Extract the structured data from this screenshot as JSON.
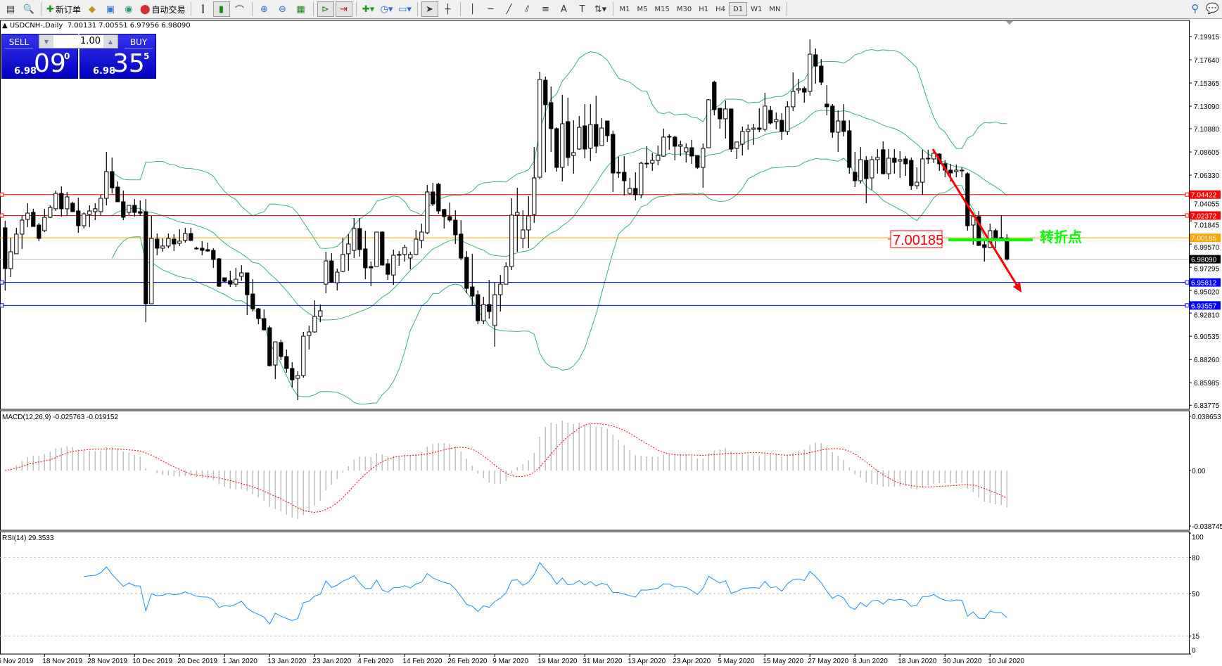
{
  "toolbar": {
    "new_order": "新订单",
    "auto_trading": "自动交易",
    "timeframes": [
      "M1",
      "M5",
      "M15",
      "M30",
      "H1",
      "H4",
      "D1",
      "W1",
      "MN"
    ],
    "active_timeframe": "D1"
  },
  "header": {
    "symbol": "USDCNH-,Daily",
    "ohlc": "7.00131 7.00551 6.97956 6.98090"
  },
  "trade_panel": {
    "sell_label": "SELL",
    "buy_label": "BUY",
    "lot": "1.00",
    "sell_prefix": "6.98",
    "sell_big": "09",
    "sell_sup": "0",
    "buy_prefix": "6.98",
    "buy_big": "35",
    "buy_sup": "5"
  },
  "colors": {
    "bands": "#3cb371",
    "bull_fill": "#ffffff",
    "bear_fill": "#000000",
    "macd_hist": "#c0c0c0",
    "macd_signal": "#ff0000",
    "rsi": "#1e90ff",
    "resistance": "#ff0000",
    "pivot": "#ffa500",
    "support": "#0000ff",
    "bid": "#c0c0c0",
    "annotation_green": "#00ff00",
    "trend_arrow": "#ff0000"
  },
  "chart_data": {
    "type": "candlestick",
    "symbol": "USDCNH-",
    "timeframe": "Daily",
    "indicators": [
      "Bollinger Bands(20,2)",
      "MACD(12,26,9)",
      "RSI(14)"
    ],
    "price_axis_ticks": [
      "7.19915",
      "7.17640",
      "7.15365",
      "7.13090",
      "7.10880",
      "7.08605",
      "7.06330",
      "7.04055",
      "7.01845",
      "6.99570",
      "6.97295",
      "6.95020",
      "6.92810",
      "6.90535",
      "6.88260",
      "6.85985",
      "6.83775"
    ],
    "ylim": [
      6.83775,
      7.19915
    ],
    "time_labels": [
      "6 Nov 2019",
      "18 Nov 2019",
      "28 Nov 2019",
      "10 Dec 2019",
      "20 Dec 2019",
      "1 Jan 2020",
      "13 Jan 2020",
      "23 Jan 2020",
      "4 Feb 2020",
      "14 Feb 2020",
      "26 Feb 2020",
      "9 Mar 2020",
      "19 Mar 2020",
      "31 Mar 2020",
      "13 Apr 2020",
      "23 Apr 2020",
      "5 May 2020",
      "15 May 2020",
      "27 May 2020",
      "8 Jun 2020",
      "18 Jun 2020",
      "30 Jun 2020",
      "10 Jul 2020"
    ],
    "hlines": [
      {
        "price": 7.04422,
        "label": "7.04422",
        "kind": "resistance"
      },
      {
        "price": 7.02372,
        "label": "7.02372",
        "kind": "resistance"
      },
      {
        "price": 7.00185,
        "label": "7.00185",
        "kind": "pivot"
      },
      {
        "price": 6.9809,
        "label": "6.98090",
        "kind": "bid"
      },
      {
        "price": 6.95812,
        "label": "6.95812",
        "kind": "support"
      },
      {
        "price": 6.93557,
        "label": "6.93557",
        "kind": "support"
      }
    ],
    "annotations": {
      "price_box": "7.00185",
      "pivot_text": "转折点"
    },
    "macd": {
      "label": "MACD(12,26,9) -0.025763 -0.019152",
      "ylim": [
        -0.038745,
        0.038653
      ],
      "ticks": [
        "0.038653",
        "0.00",
        "-0.038745"
      ]
    },
    "rsi": {
      "label": "RSI(14) 29.3533",
      "ylim": [
        0,
        100
      ],
      "levels": [
        80,
        50,
        15
      ],
      "ticks": [
        "100",
        "80",
        "50",
        "15",
        "0"
      ]
    },
    "ohlc": [
      [
        7.0117,
        7.0186,
        6.9502,
        6.9717
      ],
      [
        6.9717,
        7.002,
        6.9634,
        6.9882
      ],
      [
        6.9862,
        7.0117,
        6.9862,
        7.0055
      ],
      [
        7.0055,
        7.0234,
        6.991,
        7.0192
      ],
      [
        7.0199,
        7.0358,
        7.0124,
        7.0261
      ],
      [
        7.0268,
        7.0303,
        7.013,
        7.013
      ],
      [
        7.0144,
        7.0165,
        6.9986,
        7.0013
      ],
      [
        7.0089,
        7.0303,
        7.0075,
        7.022
      ],
      [
        7.022,
        7.0337,
        7.0213,
        7.0316
      ],
      [
        7.0303,
        7.0482,
        7.0282,
        7.0454
      ],
      [
        7.0454,
        7.0523,
        7.0227,
        7.0303
      ],
      [
        7.0303,
        7.0468,
        7.0241,
        7.042
      ],
      [
        7.0358,
        7.0372,
        7.0275,
        7.0275
      ],
      [
        7.0282,
        7.0413,
        7.0068,
        7.0137
      ],
      [
        7.0137,
        7.0268,
        7.011,
        7.0254
      ],
      [
        7.0248,
        7.0337,
        7.0124,
        7.0282
      ],
      [
        7.0275,
        7.0358,
        7.0192,
        7.0303
      ],
      [
        7.0275,
        7.0441,
        7.0241,
        7.0406
      ],
      [
        7.0406,
        7.0861,
        7.0337,
        7.0668
      ],
      [
        7.0668,
        7.0806,
        7.0454,
        7.0509
      ],
      [
        7.0516,
        7.0571,
        7.0372,
        7.0372
      ],
      [
        7.0372,
        7.0482,
        7.0192,
        7.022
      ],
      [
        7.0268,
        7.0337,
        7.0241,
        7.0337
      ],
      [
        7.0337,
        7.0399,
        7.0227,
        7.0268
      ],
      [
        7.0275,
        7.0385,
        7.0234,
        7.0261
      ],
      [
        7.0275,
        7.0399,
        6.9192,
        6.9372
      ],
      [
        6.9372,
        7.0234,
        6.9372,
        7.0013
      ],
      [
        7.0006,
        7.0061,
        6.9848,
        6.9917
      ],
      [
        6.9917,
        7.0013,
        6.9882,
        6.9938
      ],
      [
        6.9938,
        7.0061,
        6.9917,
        7.0013
      ],
      [
        7.0006,
        7.0055,
        6.9889,
        6.9958
      ],
      [
        6.9965,
        7.0103,
        6.9938,
        6.9986
      ],
      [
        6.9993,
        7.0117,
        6.9972,
        7.0061
      ],
      [
        7.0061,
        7.0117,
        6.9986,
        6.9993
      ],
      [
        6.9917,
        6.9931,
        6.9903,
        6.9917
      ],
      [
        6.9917,
        6.9986,
        6.9848,
        6.9896
      ],
      [
        6.9903,
        6.9972,
        6.9882,
        6.9889
      ],
      [
        6.9896,
        6.9917,
        6.9724,
        6.9806
      ],
      [
        6.9813,
        6.982,
        6.9537,
        6.9544
      ],
      [
        6.9627,
        6.9627,
        6.9585,
        6.9592
      ],
      [
        6.9599,
        6.9696,
        6.9537,
        6.9564
      ],
      [
        6.9564,
        6.9724,
        6.9537,
        6.9613
      ],
      [
        6.9641,
        6.9751,
        6.9599,
        6.9675
      ],
      [
        6.9675,
        6.9675,
        6.9261,
        6.9461
      ],
      [
        6.9468,
        6.9613,
        6.9296,
        6.9323
      ],
      [
        6.9323,
        6.933,
        6.9172,
        6.9227
      ],
      [
        6.9227,
        6.9316,
        6.911,
        6.9117
      ],
      [
        6.9137,
        6.9158,
        6.8758,
        6.8765
      ],
      [
        6.8772,
        6.8999,
        6.8634,
        6.8999
      ],
      [
        6.8993,
        6.902,
        6.882,
        6.8855
      ],
      [
        6.8855,
        6.8924,
        6.8696,
        6.8738
      ],
      [
        6.8738,
        6.88,
        6.8552,
        6.8627
      ],
      [
        6.8641,
        6.871,
        6.8427,
        6.8668
      ],
      [
        6.8668,
        6.9096,
        6.8648,
        6.9054
      ],
      [
        6.9061,
        6.9158,
        6.8924,
        6.9096
      ],
      [
        6.9096,
        6.9406,
        6.9089,
        6.9248
      ],
      [
        6.9248,
        6.9365,
        6.9192,
        6.9303
      ],
      [
        6.9564,
        6.9882,
        6.9475,
        6.9792
      ],
      [
        6.9792,
        6.9868,
        6.9578,
        6.9585
      ],
      [
        6.9578,
        6.9717,
        6.9502,
        6.9682
      ],
      [
        6.9689,
        7.002,
        6.9682,
        6.9855
      ],
      [
        6.9862,
        7.0055,
        6.9696,
        6.9958
      ],
      [
        6.9896,
        7.0213,
        6.982,
        7.011
      ],
      [
        7.011,
        7.0213,
        6.9834,
        6.9903
      ],
      [
        6.991,
        7.0089,
        6.9613,
        6.9724
      ],
      [
        6.9737,
        6.9786,
        6.9544,
        6.9724
      ],
      [
        6.9737,
        7.0075,
        6.9737,
        7.0075
      ],
      [
        7.0075,
        7.0082,
        6.9751,
        6.9751
      ],
      [
        6.9765,
        6.9813,
        6.9606,
        6.9661
      ],
      [
        6.9654,
        6.9903,
        6.9558,
        6.9848
      ],
      [
        6.9855,
        6.9889,
        6.9744,
        6.9848
      ],
      [
        6.9855,
        6.9951,
        6.9786,
        6.9924
      ],
      [
        6.982,
        6.9882,
        6.971,
        6.9855
      ],
      [
        6.9855,
        7.0096,
        6.9848,
        7.0006
      ],
      [
        6.9993,
        7.0158,
        6.9917,
        7.0075
      ],
      [
        7.0068,
        7.0537,
        7.0055,
        7.0468
      ],
      [
        7.0468,
        7.0558,
        7.033,
        7.0351
      ],
      [
        7.0544,
        7.0558,
        7.0254,
        7.0282
      ],
      [
        7.0296,
        7.0303,
        7.011,
        7.0227
      ],
      [
        7.0227,
        7.0365,
        7.0172,
        7.0192
      ],
      [
        7.0192,
        7.0289,
        6.9958,
        7.0048
      ],
      [
        7.0055,
        7.0192,
        6.98,
        6.982
      ],
      [
        6.9827,
        6.9889,
        6.9475,
        6.9523
      ],
      [
        6.9537,
        6.9862,
        6.9358,
        6.9447
      ],
      [
        6.9461,
        6.9502,
        6.9172,
        6.9206
      ],
      [
        6.9206,
        6.944,
        6.9172,
        6.9365
      ],
      [
        6.9365,
        6.9606,
        6.9227,
        6.9296
      ],
      [
        6.9158,
        6.9578,
        6.8951,
        6.9461
      ],
      [
        6.9461,
        6.9654,
        6.9296,
        6.9564
      ],
      [
        6.9564,
        6.9779,
        6.9564,
        6.9737
      ],
      [
        6.9737,
        7.0406,
        6.9703,
        7.0241
      ],
      [
        7.0241,
        7.0509,
        6.9882,
        7.0268
      ],
      [
        7.0013,
        7.0289,
        6.9917,
        7.0096
      ],
      [
        7.0096,
        7.0427,
        6.9917,
        7.0234
      ],
      [
        7.0248,
        7.0909,
        7.0165,
        7.0606
      ],
      [
        7.0613,
        7.1647,
        7.0592,
        7.1571
      ],
      [
        7.1564,
        7.1599,
        7.0661,
        7.1323
      ],
      [
        7.1344,
        7.1502,
        7.0861,
        7.1089
      ],
      [
        7.1089,
        7.1102,
        7.0668,
        7.0709
      ],
      [
        7.0709,
        7.142,
        7.0571,
        7.1137
      ],
      [
        7.1158,
        7.1392,
        7.0723,
        7.0806
      ],
      [
        7.0826,
        7.1171,
        7.0647,
        7.0854
      ],
      [
        7.0889,
        7.1213,
        7.0882,
        7.1102
      ],
      [
        7.1116,
        7.133,
        7.0799,
        7.0889
      ],
      [
        7.0896,
        7.133,
        7.0771,
        7.113
      ],
      [
        7.113,
        7.1413,
        7.0847,
        7.0916
      ],
      [
        7.0923,
        7.1192,
        7.0923,
        7.1095
      ],
      [
        7.1164,
        7.1164,
        7.0958,
        7.102
      ],
      [
        7.1033,
        7.1068,
        7.0468,
        7.0654
      ],
      [
        7.0661,
        7.0813,
        7.0606,
        7.0654
      ],
      [
        7.0661,
        7.082,
        7.0434,
        7.0578
      ],
      [
        7.0454,
        7.0606,
        7.0441,
        7.0503
      ],
      [
        7.0503,
        7.0661,
        7.0385,
        7.0441
      ],
      [
        7.0441,
        7.0764,
        7.0406,
        7.075
      ],
      [
        7.075,
        7.0916,
        7.0702,
        7.0744
      ],
      [
        7.075,
        7.0847,
        7.0675,
        7.0778
      ],
      [
        7.0778,
        7.0923,
        7.073,
        7.0826
      ],
      [
        7.0819,
        7.1089,
        7.0813,
        7.1006
      ],
      [
        7.1013,
        7.1034,
        7.0882,
        7.1006
      ],
      [
        7.1006,
        7.102,
        7.0778,
        7.0916
      ],
      [
        7.0916,
        7.0971,
        7.082,
        7.093
      ],
      [
        7.0861,
        7.0944,
        7.0757,
        7.0902
      ],
      [
        7.0902,
        7.0978,
        7.0744,
        7.082
      ],
      [
        7.0826,
        7.0826,
        7.0695,
        7.0709
      ],
      [
        7.0709,
        7.0944,
        7.0509,
        7.0895
      ],
      [
        7.0902,
        7.1379,
        7.0902,
        7.1372
      ],
      [
        7.1544,
        7.1558,
        7.122,
        7.1275
      ],
      [
        7.1289,
        7.1289,
        7.1089,
        7.1185
      ],
      [
        7.1185,
        7.1365,
        7.0992,
        7.1282
      ],
      [
        7.1282,
        7.1282,
        7.0861,
        7.0889
      ],
      [
        7.0896,
        7.0958,
        7.0792,
        7.0958
      ],
      [
        7.0937,
        7.1109,
        7.0826,
        7.1061
      ],
      [
        7.1061,
        7.113,
        7.0882,
        7.1082
      ],
      [
        7.1082,
        7.1137,
        7.093,
        7.1095
      ],
      [
        7.1095,
        7.1289,
        7.1054,
        7.1082
      ],
      [
        7.1082,
        7.144,
        7.1061,
        7.131
      ],
      [
        7.1268,
        7.131,
        7.113,
        7.1144
      ],
      [
        7.1158,
        7.1248,
        7.1082,
        7.1178
      ],
      [
        7.1171,
        7.1241,
        7.0978,
        7.1061
      ],
      [
        7.1061,
        7.1358,
        7.1027,
        7.1303
      ],
      [
        7.1303,
        7.164,
        7.1261,
        7.1454
      ],
      [
        7.1468,
        7.1578,
        7.1433,
        7.1482
      ],
      [
        7.1482,
        7.1502,
        7.1344,
        7.1447
      ],
      [
        7.1454,
        7.1964,
        7.1413,
        7.1819
      ],
      [
        7.1813,
        7.1875,
        7.153,
        7.1702
      ],
      [
        7.1702,
        7.1771,
        7.1516,
        7.1544
      ],
      [
        7.133,
        7.1516,
        7.122,
        7.1303
      ],
      [
        7.131,
        7.133,
        7.1,
        7.1054
      ],
      [
        7.1054,
        7.1268,
        7.0861,
        7.1164
      ],
      [
        7.1164,
        7.133,
        7.1013,
        7.1061
      ],
      [
        7.1068,
        7.1171,
        7.0647,
        7.0709
      ],
      [
        7.0661,
        7.0861,
        7.0516,
        7.0578
      ],
      [
        7.0578,
        7.0909,
        7.0551,
        7.0785
      ],
      [
        7.0778,
        7.082,
        7.0358,
        7.0599
      ],
      [
        7.0606,
        7.082,
        7.0489,
        7.0785
      ],
      [
        7.0785,
        7.0889,
        7.0647,
        7.0806
      ],
      [
        7.0882,
        7.0964,
        7.064,
        7.0647
      ],
      [
        7.0647,
        7.0889,
        7.0592,
        7.0799
      ],
      [
        7.0799,
        7.0889,
        7.0647,
        7.0758
      ],
      [
        7.0771,
        7.0868,
        7.0606,
        7.0785
      ],
      [
        7.0792,
        7.082,
        7.0626,
        7.0744
      ],
      [
        7.0778,
        7.0806,
        7.0489,
        7.053
      ],
      [
        7.053,
        7.0709,
        7.0496,
        7.0564
      ],
      [
        7.0564,
        7.0882,
        7.0441,
        7.0792
      ],
      [
        7.0799,
        7.0882,
        7.0744,
        7.0792
      ],
      [
        7.0792,
        7.0882,
        7.0751,
        7.0847
      ],
      [
        7.084,
        7.0847,
        7.0675,
        7.0744
      ],
      [
        7.0744,
        7.0778,
        7.0613,
        7.0682
      ],
      [
        7.0682,
        7.0744,
        7.0571,
        7.0654
      ],
      [
        7.0668,
        7.0737,
        7.0613,
        7.0682
      ],
      [
        7.0682,
        7.0709,
        7.0613,
        7.0675
      ],
      [
        7.0647,
        7.0661,
        7.0089,
        7.0137
      ],
      [
        7.0144,
        7.0268,
        6.9951,
        7.0227
      ],
      [
        7.0227,
        7.0282,
        6.9938,
        6.9944
      ],
      [
        6.9951,
        6.9993,
        6.9786,
        6.9924
      ],
      [
        6.9924,
        7.0158,
        6.9917,
        7.0089
      ],
      [
        7.0089,
        7.011,
        6.9917,
        7.0013
      ],
      [
        7.002,
        7.0241,
        7.0006,
        7.0013
      ],
      [
        7.00131,
        7.00551,
        6.97956,
        6.9809
      ]
    ]
  }
}
